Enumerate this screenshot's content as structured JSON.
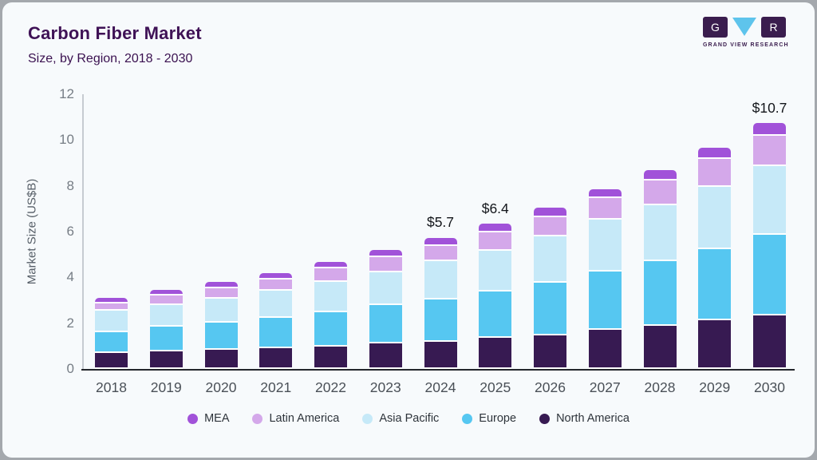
{
  "header": {
    "title": "Carbon Fiber Market",
    "subtitle": "Size, by Region, 2018 - 2030"
  },
  "logo": {
    "letter_left": "G",
    "letter_right": "R",
    "caption": "GRAND VIEW RESEARCH",
    "square_color": "#3a1d4e",
    "triangle_color": "#5ec4ec"
  },
  "chart_data": {
    "type": "bar",
    "stacked": true,
    "title": "Carbon Fiber Market Size, by Region, 2018 - 2030",
    "ylabel": "Market Size (US$B)",
    "xlabel": "",
    "ylim": [
      0,
      12
    ],
    "yticks": [
      0,
      2,
      4,
      6,
      8,
      10,
      12
    ],
    "grid": false,
    "legend_position": "bottom",
    "categories": [
      "2018",
      "2019",
      "2020",
      "2021",
      "2022",
      "2023",
      "2024",
      "2025",
      "2026",
      "2027",
      "2028",
      "2029",
      "2030"
    ],
    "series": [
      {
        "name": "North America",
        "color": "#371a52",
        "values": [
          0.7,
          0.76,
          0.84,
          0.9,
          0.97,
          1.13,
          1.2,
          1.35,
          1.47,
          1.7,
          1.88,
          2.12,
          2.33
        ]
      },
      {
        "name": "Europe",
        "color": "#56c7f1",
        "values": [
          0.92,
          1.09,
          1.2,
          1.32,
          1.51,
          1.65,
          1.85,
          2.02,
          2.3,
          2.57,
          2.83,
          3.12,
          3.53
        ]
      },
      {
        "name": "Asia Pacific",
        "color": "#c6e9f8",
        "values": [
          0.92,
          0.96,
          1.02,
          1.19,
          1.32,
          1.45,
          1.66,
          1.81,
          2.01,
          2.25,
          2.43,
          2.73,
          3.0
        ]
      },
      {
        "name": "Latin America",
        "color": "#d4a8ea",
        "values": [
          0.33,
          0.41,
          0.47,
          0.5,
          0.61,
          0.65,
          0.68,
          0.78,
          0.85,
          0.93,
          1.08,
          1.2,
          1.31
        ]
      },
      {
        "name": "MEA",
        "color": "#a152d9",
        "values": [
          0.22,
          0.25,
          0.27,
          0.27,
          0.27,
          0.32,
          0.35,
          0.4,
          0.41,
          0.41,
          0.45,
          0.48,
          0.57
        ]
      }
    ],
    "totals_approx": [
      3.1,
      3.5,
      3.8,
      4.2,
      4.7,
      5.2,
      5.7,
      6.4,
      7.0,
      7.9,
      8.7,
      9.7,
      10.7
    ],
    "annotations": [
      {
        "category": "2024",
        "text": "$5.7"
      },
      {
        "category": "2025",
        "text": "$6.4"
      },
      {
        "category": "2030",
        "text": "$10.7"
      }
    ],
    "legend": [
      {
        "name": "MEA",
        "color": "#a152d9"
      },
      {
        "name": "Latin America",
        "color": "#d4a8ea"
      },
      {
        "name": "Asia Pacific",
        "color": "#c6e9f8"
      },
      {
        "name": "Europe",
        "color": "#56c7f1"
      },
      {
        "name": "North America",
        "color": "#371a52"
      }
    ]
  }
}
